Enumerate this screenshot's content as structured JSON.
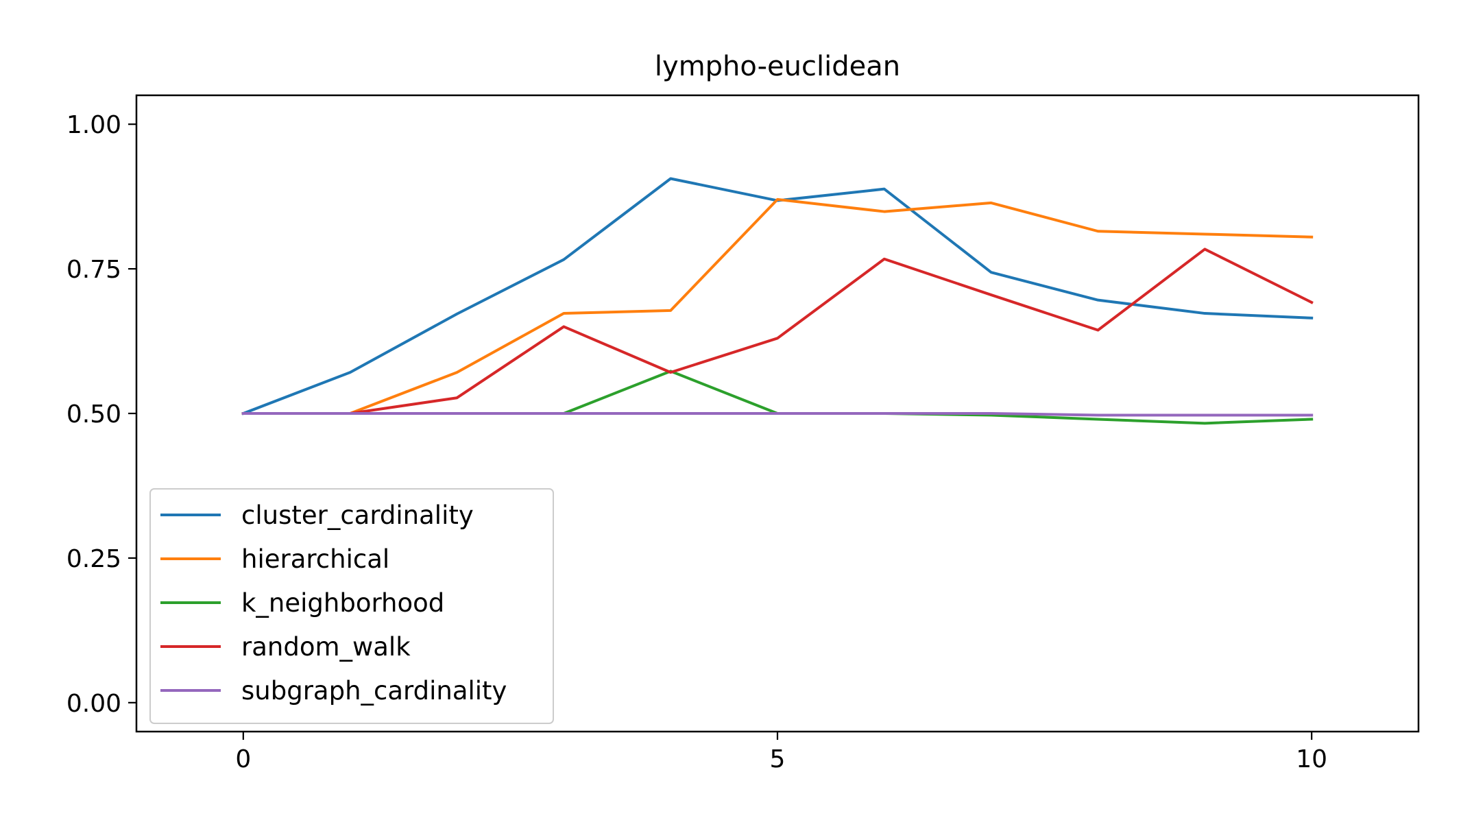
{
  "chart_data": {
    "type": "line",
    "title": "lympho-euclidean",
    "xlabel": "",
    "ylabel": "",
    "xlim": [
      -1,
      11
    ],
    "ylim": [
      -0.05,
      1.05
    ],
    "xticks": [
      0,
      5,
      10
    ],
    "xtick_labels": [
      "0",
      "5",
      "10"
    ],
    "yticks": [
      0.0,
      0.25,
      0.5,
      0.75,
      1.0
    ],
    "ytick_labels": [
      "0.00",
      "0.25",
      "0.50",
      "0.75",
      "1.00"
    ],
    "grid": false,
    "legend_position": "lower-left",
    "x": [
      0,
      1,
      2,
      3,
      4,
      5,
      6,
      7,
      8,
      9,
      10
    ],
    "series": [
      {
        "name": "cluster_cardinality",
        "color": "#1f77b4",
        "values": [
          0.5,
          0.571,
          0.672,
          0.766,
          0.906,
          0.868,
          0.888,
          0.744,
          0.696,
          0.673,
          0.665
        ]
      },
      {
        "name": "hierarchical",
        "color": "#ff7f0e",
        "values": [
          0.5,
          0.5,
          0.571,
          0.673,
          0.678,
          0.87,
          0.849,
          0.864,
          0.815,
          0.81,
          0.805
        ]
      },
      {
        "name": "k_neighborhood",
        "color": "#2ca02c",
        "values": [
          0.5,
          0.5,
          0.5,
          0.5,
          0.573,
          0.5,
          0.5,
          0.497,
          0.49,
          0.483,
          0.49
        ]
      },
      {
        "name": "random_walk",
        "color": "#d62728",
        "values": [
          0.5,
          0.5,
          0.527,
          0.65,
          0.571,
          0.63,
          0.767,
          0.705,
          0.644,
          0.784,
          0.692
        ]
      },
      {
        "name": "subgraph_cardinality",
        "color": "#9467bd",
        "values": [
          0.5,
          0.5,
          0.5,
          0.5,
          0.5,
          0.5,
          0.5,
          0.5,
          0.497,
          0.497,
          0.497
        ]
      }
    ]
  }
}
